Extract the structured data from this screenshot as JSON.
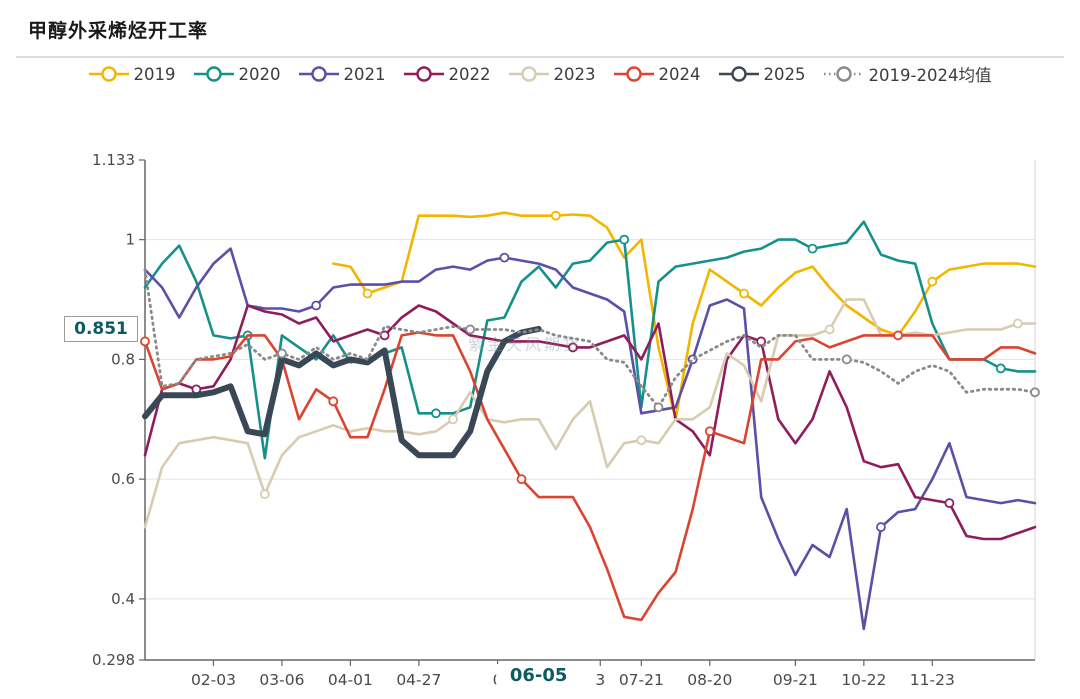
{
  "title": "甲醇外采烯烃开工率",
  "watermark": "紫金天风期货",
  "chart_data": {
    "type": "line",
    "title": "甲醇外采烯烃开工率",
    "ylim": [
      0.298,
      1.133
    ],
    "n_points": 53,
    "grid": true,
    "legend_position": "top",
    "y_ticks": [
      {
        "label": "1.133",
        "value": 1.133,
        "grid": false
      },
      {
        "label": "1",
        "value": 1.0,
        "grid": true
      },
      {
        "label": "0.8",
        "value": 0.8,
        "grid": true
      },
      {
        "label": "0.6",
        "value": 0.6,
        "grid": true
      },
      {
        "label": "0.4",
        "value": 0.4,
        "grid": true
      },
      {
        "label": "0.298",
        "value": 0.298,
        "grid": false
      }
    ],
    "x_ticks": [
      {
        "label": "02-03",
        "i": 4
      },
      {
        "label": "03-06",
        "i": 8
      },
      {
        "label": "04-01",
        "i": 12
      },
      {
        "label": "04-27",
        "i": 16
      },
      {
        "label": "0",
        "i": 20.6
      },
      {
        "label": "3",
        "i": 26.6
      },
      {
        "label": "07-21",
        "i": 29
      },
      {
        "label": "08-20",
        "i": 33
      },
      {
        "label": "09-21",
        "i": 38
      },
      {
        "label": "10-22",
        "i": 42
      },
      {
        "label": "11-23",
        "i": 46
      }
    ],
    "highlight": {
      "label": "06-05",
      "value_label": "0.851",
      "value": 0.851,
      "i": 23
    },
    "series": [
      {
        "name": "2019",
        "color": "#F2B600",
        "width": 2.6,
        "values": [
          null,
          null,
          null,
          null,
          null,
          null,
          null,
          null,
          null,
          null,
          null,
          0.96,
          0.955,
          0.91,
          0.92,
          0.93,
          1.04,
          1.04,
          1.04,
          1.038,
          1.04,
          1.045,
          1.04,
          1.04,
          1.04,
          1.042,
          1.04,
          1.02,
          0.97,
          1.0,
          0.82,
          0.7,
          0.86,
          0.95,
          0.93,
          0.91,
          0.89,
          0.92,
          0.945,
          0.955,
          0.92,
          0.89,
          0.87,
          0.85,
          0.84,
          0.88,
          0.93,
          0.95,
          0.955,
          0.96,
          0.96,
          0.96,
          0.955
        ]
      },
      {
        "name": "2020",
        "color": "#15918A",
        "width": 2.6,
        "values": [
          0.92,
          0.96,
          0.99,
          0.93,
          0.84,
          0.835,
          0.84,
          0.635,
          0.84,
          0.82,
          0.8,
          0.84,
          0.795,
          0.8,
          0.81,
          0.82,
          0.71,
          0.71,
          0.71,
          0.72,
          0.865,
          0.87,
          0.93,
          0.955,
          0.92,
          0.96,
          0.965,
          0.995,
          1.0,
          0.72,
          0.93,
          0.955,
          0.96,
          0.965,
          0.97,
          0.98,
          0.985,
          1.0,
          1.0,
          0.985,
          0.99,
          0.995,
          1.03,
          0.975,
          0.965,
          0.96,
          0.86,
          0.8,
          0.8,
          0.8,
          0.785,
          0.78,
          0.78
        ]
      },
      {
        "name": "2021",
        "color": "#5B4FA8",
        "width": 2.6,
        "values": [
          0.95,
          0.92,
          0.87,
          0.92,
          0.96,
          0.985,
          0.89,
          0.885,
          0.885,
          0.88,
          0.89,
          0.92,
          0.925,
          0.925,
          0.925,
          0.93,
          0.93,
          0.95,
          0.955,
          0.95,
          0.965,
          0.97,
          0.965,
          0.96,
          0.95,
          0.92,
          0.91,
          0.9,
          0.88,
          0.71,
          0.715,
          0.72,
          0.8,
          0.89,
          0.9,
          0.885,
          0.57,
          0.5,
          0.44,
          0.49,
          0.47,
          0.55,
          0.35,
          0.52,
          0.545,
          0.55,
          0.6,
          0.66,
          0.57,
          0.565,
          0.56,
          0.565,
          0.56
        ]
      },
      {
        "name": "2022",
        "color": "#8F1D5C",
        "width": 2.6,
        "values": [
          0.64,
          0.75,
          0.76,
          0.75,
          0.755,
          0.8,
          0.89,
          0.88,
          0.875,
          0.86,
          0.87,
          0.83,
          0.84,
          0.85,
          0.84,
          0.87,
          0.89,
          0.88,
          0.86,
          0.84,
          0.835,
          0.83,
          0.83,
          0.83,
          0.825,
          0.82,
          0.82,
          0.83,
          0.84,
          0.8,
          0.86,
          0.7,
          0.68,
          0.64,
          0.8,
          0.84,
          0.83,
          0.7,
          0.66,
          0.7,
          0.78,
          0.72,
          0.63,
          0.62,
          0.625,
          0.57,
          0.565,
          0.56,
          0.505,
          0.5,
          0.5,
          0.51,
          0.52
        ]
      },
      {
        "name": "2023",
        "color": "#D9CBB0",
        "width": 2.6,
        "values": [
          0.52,
          0.62,
          0.66,
          0.665,
          0.67,
          0.665,
          0.66,
          0.575,
          0.64,
          0.67,
          0.68,
          0.69,
          0.68,
          0.685,
          0.68,
          0.68,
          0.675,
          0.68,
          0.7,
          0.745,
          0.7,
          0.695,
          0.7,
          0.7,
          0.65,
          0.7,
          0.73,
          0.62,
          0.66,
          0.665,
          0.66,
          0.7,
          0.7,
          0.72,
          0.81,
          0.79,
          0.73,
          0.84,
          0.84,
          0.84,
          0.85,
          0.9,
          0.9,
          0.84,
          0.84,
          0.845,
          0.84,
          0.845,
          0.85,
          0.85,
          0.85,
          0.86,
          0.86
        ]
      },
      {
        "name": "2024",
        "color": "#DA4430",
        "width": 2.6,
        "values": [
          0.83,
          0.75,
          0.76,
          0.8,
          0.8,
          0.805,
          0.84,
          0.84,
          0.8,
          0.7,
          0.75,
          0.73,
          0.67,
          0.67,
          0.75,
          0.84,
          0.845,
          0.84,
          0.84,
          0.78,
          0.7,
          0.65,
          0.6,
          0.57,
          0.57,
          0.57,
          0.52,
          0.45,
          0.37,
          0.365,
          0.41,
          0.445,
          0.55,
          0.68,
          0.67,
          0.66,
          0.8,
          0.8,
          0.83,
          0.835,
          0.82,
          0.83,
          0.84,
          0.84,
          0.84,
          0.84,
          0.84,
          0.8,
          0.8,
          0.8,
          0.82,
          0.82,
          0.81
        ]
      },
      {
        "name": "2025",
        "color": "#3A4756",
        "width": 6,
        "markers": false,
        "values": [
          0.705,
          0.74,
          0.74,
          0.74,
          0.745,
          0.755,
          0.68,
          0.675,
          0.8,
          0.79,
          0.81,
          0.79,
          0.8,
          0.795,
          0.815,
          0.665,
          0.64,
          0.64,
          0.64,
          0.68,
          0.78,
          0.83,
          0.845,
          0.851,
          null,
          null,
          null,
          null,
          null,
          null,
          null,
          null,
          null,
          null,
          null,
          null,
          null,
          null,
          null,
          null,
          null,
          null,
          null,
          null,
          null,
          null,
          null,
          null,
          null,
          null,
          null,
          null,
          null
        ]
      },
      {
        "name": "2019-2024均值",
        "color": "#8A8A8A",
        "width": 2.8,
        "dotted": true,
        "values": [
          0.95,
          0.755,
          0.76,
          0.8,
          0.805,
          0.81,
          0.825,
          0.8,
          0.81,
          0.8,
          0.82,
          0.8,
          0.81,
          0.8,
          0.855,
          0.85,
          0.845,
          0.85,
          0.855,
          0.85,
          0.85,
          0.85,
          0.845,
          0.85,
          0.84,
          0.835,
          0.83,
          0.8,
          0.795,
          0.755,
          0.72,
          0.77,
          0.8,
          0.815,
          0.83,
          0.84,
          0.82,
          0.84,
          0.84,
          0.8,
          0.8,
          0.8,
          0.795,
          0.78,
          0.76,
          0.78,
          0.79,
          0.78,
          0.745,
          0.75,
          0.75,
          0.75,
          0.745
        ]
      }
    ]
  }
}
